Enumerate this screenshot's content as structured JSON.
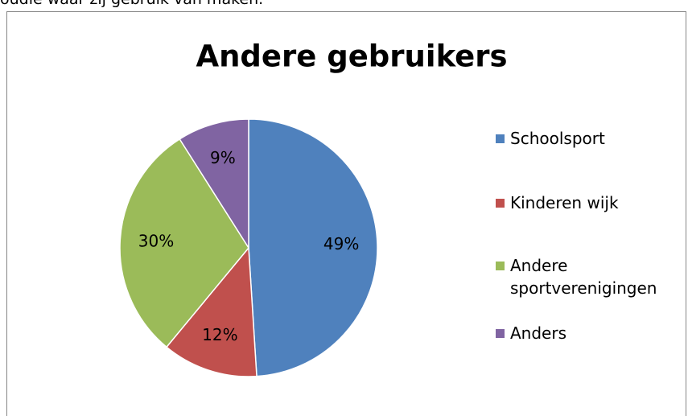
{
  "caption": "oudie waar zij gebruik van maken.",
  "chart_data": {
    "type": "pie",
    "title": "Andere gebruikers",
    "categories": [
      "Schoolsport",
      "Kinderen wijk",
      "Andere sportverenigingen",
      "Anders"
    ],
    "values": [
      49,
      12,
      30,
      9
    ],
    "value_labels": [
      "49%",
      "12%",
      "30%",
      "9%"
    ],
    "colors": [
      "#4f81bd",
      "#c0504d",
      "#9bbb59",
      "#8064a2"
    ],
    "legend": "right"
  }
}
